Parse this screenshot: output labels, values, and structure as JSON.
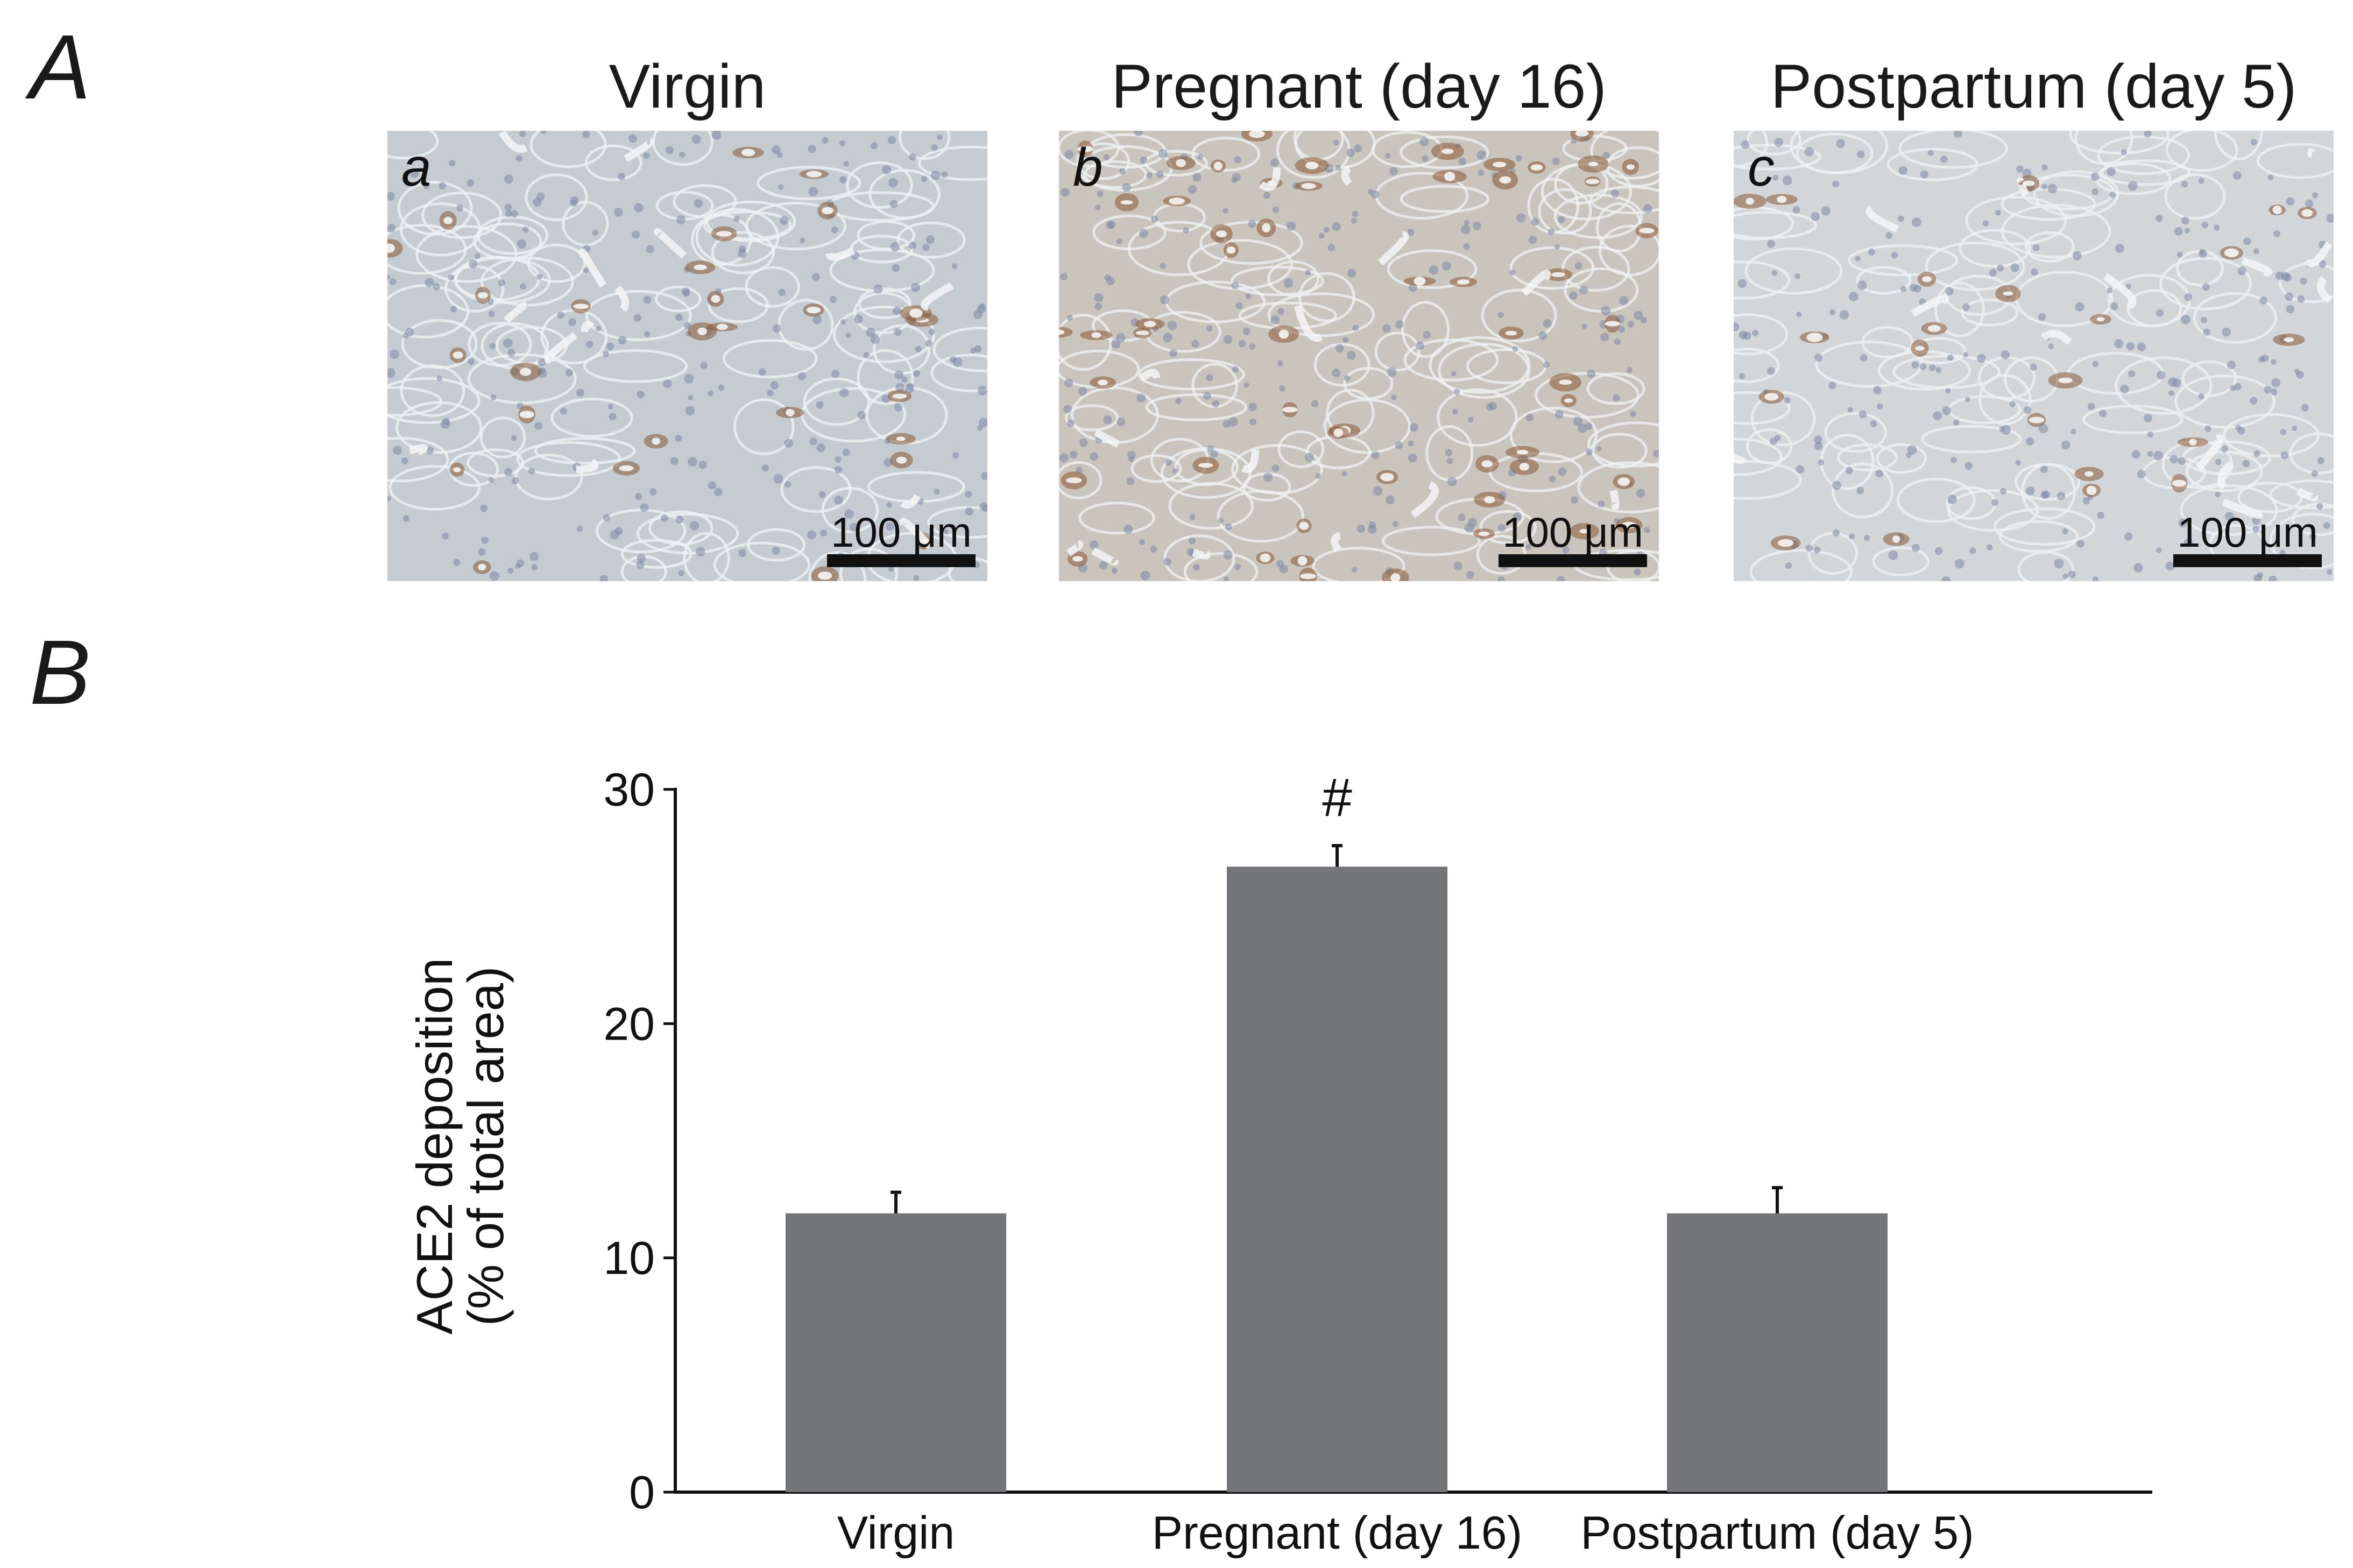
{
  "panel_a": {
    "letter": "A",
    "columns": [
      {
        "title": "Virgin",
        "sub_letter": "a",
        "scale_label": "100 μm",
        "tint": "#c4cbd1"
      },
      {
        "title": "Pregnant (day 16)",
        "sub_letter": "b",
        "scale_label": "100 μm",
        "tint": "#c9c4bc"
      },
      {
        "title": "Postpartum (day 5)",
        "sub_letter": "c",
        "scale_label": "100 μm",
        "tint": "#d2d6d9"
      }
    ]
  },
  "panel_b": {
    "letter": "B"
  },
  "chart_data": {
    "type": "bar",
    "title": "",
    "xlabel": "",
    "ylabel_lines": [
      "ACE2 deposition",
      "(% of total area)"
    ],
    "categories": [
      "Virgin",
      "Pregnant (day 16)",
      "Postpartum (day 5)"
    ],
    "values": [
      11.9,
      26.7,
      11.9
    ],
    "errors": [
      0.9,
      0.9,
      1.1
    ],
    "annotations": [
      "",
      "#",
      ""
    ],
    "yticks": [
      0,
      10,
      20,
      30
    ],
    "ylim": [
      0,
      30
    ],
    "bar_color": "#737578",
    "grid": false,
    "legend": "none"
  }
}
